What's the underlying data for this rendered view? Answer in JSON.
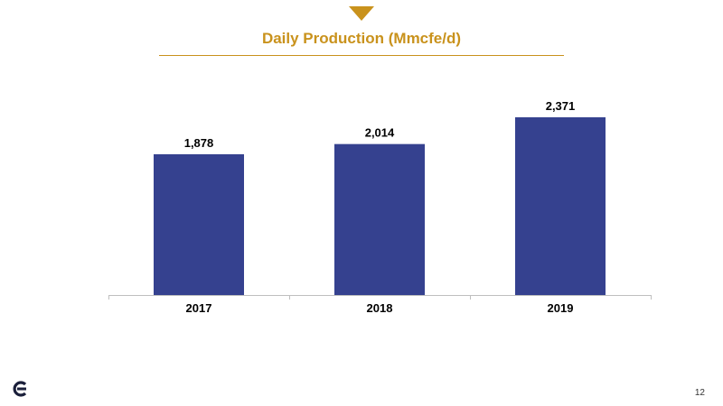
{
  "title": "Daily Production (Mmcfe/d)",
  "page_number": "12",
  "colors": {
    "accent": "#c9921c",
    "bar": "#35418f",
    "axis": "#bfbfbf"
  },
  "logo": {
    "icon": "company-logo-icon"
  },
  "chart_data": {
    "type": "bar",
    "title": "Daily Production (Mmcfe/d)",
    "xlabel": "",
    "ylabel": "",
    "categories": [
      "2017",
      "2018",
      "2019"
    ],
    "values": [
      1878,
      2014,
      2371
    ],
    "value_labels": [
      "1,878",
      "2,014",
      "2,371"
    ],
    "grid": false,
    "legend": "none"
  }
}
